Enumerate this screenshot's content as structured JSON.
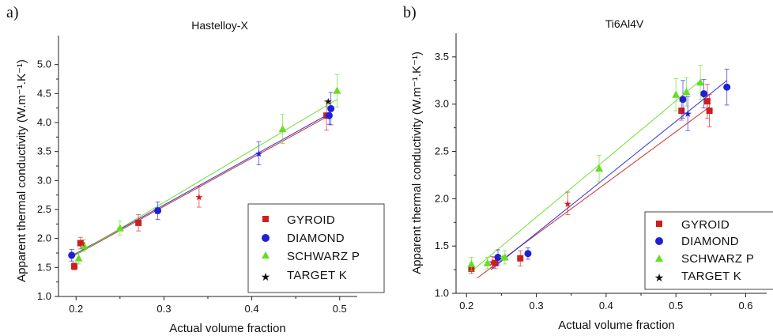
{
  "chart_data": [
    {
      "type": "scatter",
      "panel_label": "a)",
      "title": "Hastelloy-X",
      "xlabel": "Actual volume fraction",
      "ylabel": "Apparent thermal conductivity (W.m⁻¹.K⁻¹)",
      "xlim": [
        0.18,
        0.52
      ],
      "ylim": [
        1.0,
        5.5
      ],
      "xticks": [
        "0.2",
        "0.3",
        "0.4",
        "0.5"
      ],
      "yticks": [
        "1.0",
        "1.5",
        "2.0",
        "2.5",
        "3.0",
        "3.5",
        "4.0",
        "4.5",
        "5.0"
      ],
      "legend_position": "bottom-right",
      "series": [
        {
          "name": "GYROID",
          "color": "#cc1f1f",
          "marker": "square",
          "x": [
            0.198,
            0.205,
            0.271,
            0.485
          ],
          "y": [
            1.52,
            1.92,
            2.27,
            4.12
          ],
          "err": [
            0.06,
            0.1,
            0.14,
            0.25
          ],
          "fit": [
            [
              0.195,
              1.68
            ],
            [
              0.488,
              4.12
            ]
          ]
        },
        {
          "name": "DIAMOND",
          "color": "#1f1fd6",
          "marker": "circle",
          "x": [
            0.195,
            0.293,
            0.488,
            0.49
          ],
          "y": [
            1.71,
            2.48,
            4.12,
            4.24
          ],
          "err": [
            0.1,
            0.15,
            0.15,
            0.28
          ],
          "fit": [
            [
              0.195,
              1.7
            ],
            [
              0.488,
              4.15
            ]
          ]
        },
        {
          "name": "SCHWARZ P",
          "color": "#66dd22",
          "marker": "triangle",
          "x": [
            0.203,
            0.209,
            0.25,
            0.435,
            0.497
          ],
          "y": [
            1.66,
            1.88,
            2.18,
            3.89,
            4.55
          ],
          "err": [
            0.1,
            0.1,
            0.12,
            0.25,
            0.28
          ],
          "fit": [
            [
              0.2,
              1.72
            ],
            [
              0.497,
              4.4
            ]
          ]
        },
        {
          "name": "TARGET K",
          "color": "#111111",
          "marker": "star",
          "x": [
            0.207,
            0.25,
            0.292,
            0.34,
            0.408,
            0.487
          ],
          "y": [
            1.92,
            2.17,
            2.48,
            2.72,
            3.47,
            4.37
          ],
          "star_colors": [
            "#cc1f1f",
            "#66dd22",
            "#1f1fd6",
            "#cc1f1f",
            "#1f1fd6",
            "#111111"
          ],
          "err": [
            0,
            0,
            0,
            0.18,
            0.2,
            0
          ]
        }
      ]
    },
    {
      "type": "scatter",
      "panel_label": "b)",
      "title": "Ti6Al4V",
      "xlabel": "Actual volume fraction",
      "ylabel": "Apparent thermal conductivity (W.m⁻¹.K⁻¹)",
      "xlim": [
        0.185,
        0.63
      ],
      "ylim": [
        1.0,
        3.75
      ],
      "xticks": [
        "0.2",
        "0.3",
        "0.4",
        "0.5",
        "0.6"
      ],
      "yticks": [
        "1.0",
        "1.5",
        "2.0",
        "2.5",
        "3.0",
        "3.5"
      ],
      "legend_position": "bottom-right",
      "series": [
        {
          "name": "GYROID",
          "color": "#cc1f1f",
          "marker": "square",
          "x": [
            0.207,
            0.241,
            0.277,
            0.508,
            0.545,
            0.548
          ],
          "y": [
            1.26,
            1.32,
            1.37,
            2.93,
            3.03,
            2.93
          ],
          "err": [
            0.05,
            0.06,
            0.08,
            0.1,
            0.18,
            0.17
          ],
          "fit": [
            [
              0.215,
              1.16
            ],
            [
              0.548,
              2.97
            ]
          ]
        },
        {
          "name": "DIAMOND",
          "color": "#1f1fd6",
          "marker": "circle",
          "x": [
            0.245,
            0.288,
            0.51,
            0.54,
            0.573
          ],
          "y": [
            1.38,
            1.42,
            3.05,
            3.11,
            3.18
          ],
          "err": [
            0.08,
            0.06,
            0.2,
            0.15,
            0.19
          ],
          "fit": [
            [
              0.235,
              1.25
            ],
            [
              0.573,
              3.25
            ]
          ]
        },
        {
          "name": "SCHWARZ P",
          "color": "#66dd22",
          "marker": "triangle",
          "x": [
            0.207,
            0.23,
            0.255,
            0.39,
            0.5,
            0.515,
            0.535
          ],
          "y": [
            1.31,
            1.32,
            1.38,
            2.32,
            3.1,
            3.13,
            3.23
          ],
          "err": [
            0.07,
            0.06,
            0.07,
            0.14,
            0.17,
            0.15,
            0.18
          ],
          "fit": [
            [
              0.21,
              1.25
            ],
            [
              0.535,
              3.25
            ]
          ]
        },
        {
          "name": "TARGET K",
          "color": "#111111",
          "marker": "star",
          "x": [
            0.237,
            0.252,
            0.345,
            0.517
          ],
          "y": [
            1.33,
            1.38,
            1.95,
            2.9
          ],
          "star_colors": [
            "#cc1f1f",
            "#66dd22",
            "#cc1f1f",
            "#1f1fd6"
          ],
          "err": [
            0.06,
            0,
            0.12,
            0.18
          ]
        }
      ]
    }
  ]
}
